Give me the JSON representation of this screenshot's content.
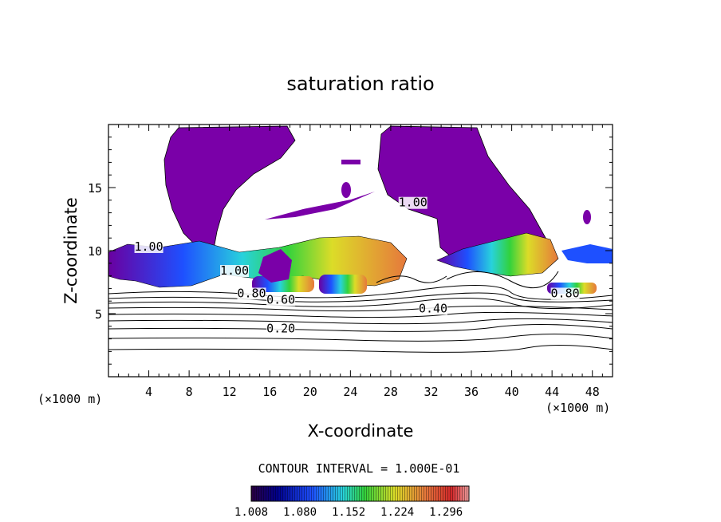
{
  "chart_data": {
    "type": "contour",
    "title": "saturation ratio",
    "xlabel": "X-coordinate",
    "ylabel": "Z-coordinate",
    "x_unit_left": "(×1000 m)",
    "x_unit_right": "(×1000 m)",
    "xlim": [
      0,
      50
    ],
    "ylim": [
      0,
      20
    ],
    "x_ticks": [
      4,
      8,
      12,
      16,
      20,
      24,
      28,
      32,
      36,
      40,
      44,
      48
    ],
    "y_ticks": [
      5,
      10,
      15
    ],
    "contour_interval_text": "CONTOUR INTERVAL = 1.000E-01",
    "contour_labels": [
      {
        "text": "1.00",
        "x": 4.0,
        "z": 10.0
      },
      {
        "text": "1.00",
        "x": 30.2,
        "z": 13.5
      },
      {
        "text": "1.00",
        "x": 12.5,
        "z": 8.1
      },
      {
        "text": "0.80",
        "x": 14.2,
        "z": 6.3
      },
      {
        "text": "0.60",
        "x": 17.1,
        "z": 5.8
      },
      {
        "text": "0.40",
        "x": 32.2,
        "z": 5.1
      },
      {
        "text": "0.80",
        "x": 45.3,
        "z": 6.3
      },
      {
        "text": "0.20",
        "x": 17.1,
        "z": 3.5
      }
    ],
    "colorbar": {
      "min": 1.008,
      "max": 1.33,
      "tick_labels": [
        "1.008",
        "1.080",
        "1.152",
        "1.224",
        "1.296"
      ],
      "colors": [
        "#2a0040",
        "#00008c",
        "#1e50ff",
        "#28d2dc",
        "#32d23c",
        "#dcdc28",
        "#e6783c",
        "#d2282a",
        "#f0a0a0"
      ]
    },
    "colors": {
      "undersaturated_region": "#7a00a8",
      "contour_line": "#000000"
    }
  }
}
